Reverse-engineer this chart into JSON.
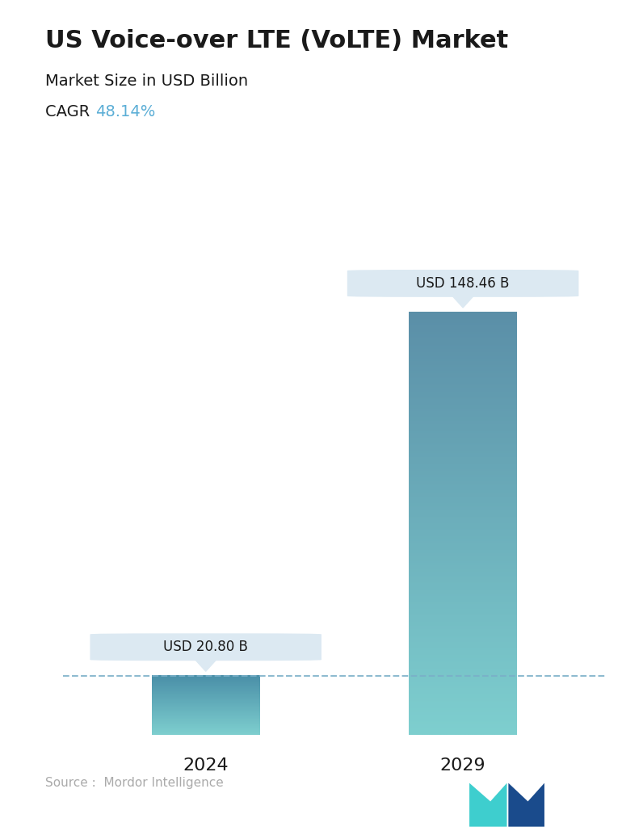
{
  "title": "US Voice-over LTE (VoLTE) Market",
  "subtitle": "Market Size in USD Billion",
  "cagr_label": "CAGR ",
  "cagr_value": "48.14%",
  "cagr_color": "#5baed6",
  "categories": [
    "2024",
    "2029"
  ],
  "values": [
    20.8,
    148.46
  ],
  "label_texts": [
    "USD 20.80 B",
    "USD 148.46 B"
  ],
  "bar_top_color_2024": "#4a8fa8",
  "bar_bottom_color_2024": "#7ecfcf",
  "bar_top_color_2029": "#5b8fa8",
  "bar_bottom_color_2029": "#7ecfcf",
  "dashed_line_color": "#7aafc8",
  "tooltip_bg": "#dce9f2",
  "source_text": "Source :  Mordor Intelligence",
  "source_color": "#aaaaaa",
  "bg_color": "#ffffff",
  "ylim_max": 170,
  "bar_width": 0.42
}
